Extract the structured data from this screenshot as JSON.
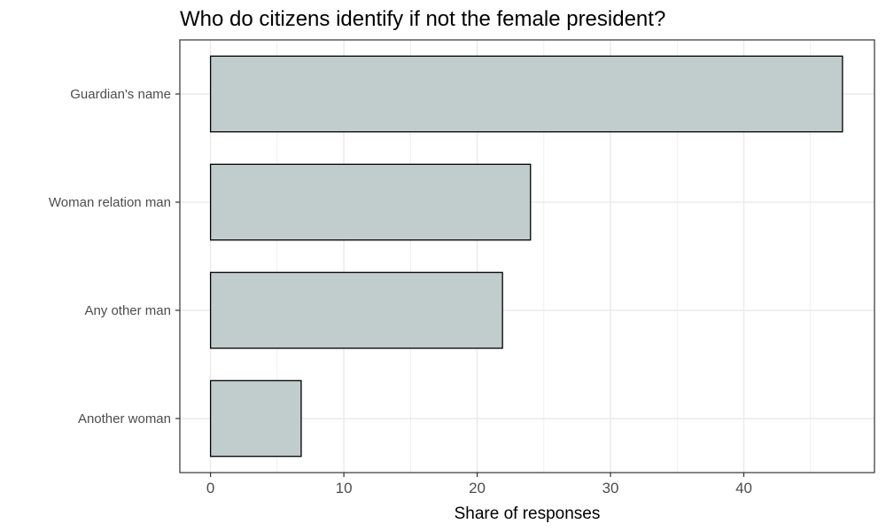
{
  "chart_data": {
    "type": "bar",
    "orientation": "horizontal",
    "title": "Who do citizens identify if not the female president?",
    "xlabel": "Share of responses",
    "ylabel": "",
    "categories": [
      "Guardian's name",
      "Woman relation man",
      "Any other man",
      "Another woman"
    ],
    "values": [
      47.4,
      24.0,
      21.9,
      6.8
    ],
    "xlim": [
      -2.3,
      49.8
    ],
    "xticks": [
      0,
      10,
      20,
      30,
      40
    ],
    "xtick_labels": [
      "0",
      "10",
      "20",
      "30",
      "40"
    ],
    "grid": true,
    "bar_color": "#c1cccc",
    "bar_stroke": "#000000",
    "grid_color": "#ebebeb",
    "panel_border_color": "#333333"
  }
}
